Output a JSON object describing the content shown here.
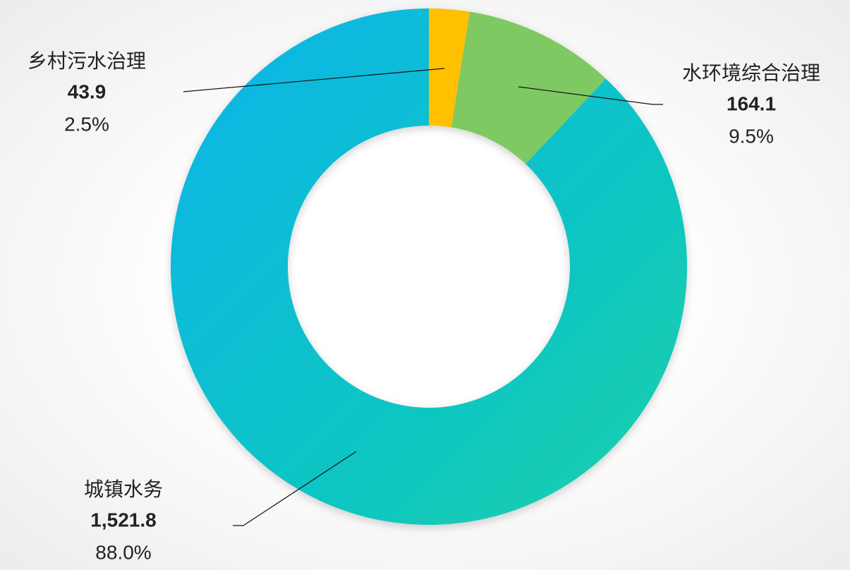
{
  "chart_data": {
    "type": "pie",
    "donut": true,
    "categories": [
      "乡村污水治理",
      "水环境综合治理",
      "城镇水务"
    ],
    "values": [
      43.9,
      164.1,
      1521.8
    ],
    "value_labels": [
      "43.9",
      "164.1",
      "1,521.8"
    ],
    "percents": [
      2.5,
      9.5,
      88.0
    ],
    "percent_labels": [
      "2.5%",
      "9.5%",
      "88.0%"
    ],
    "colors": [
      "#ffc000",
      "#7ec962",
      "#12c6c8"
    ]
  }
}
